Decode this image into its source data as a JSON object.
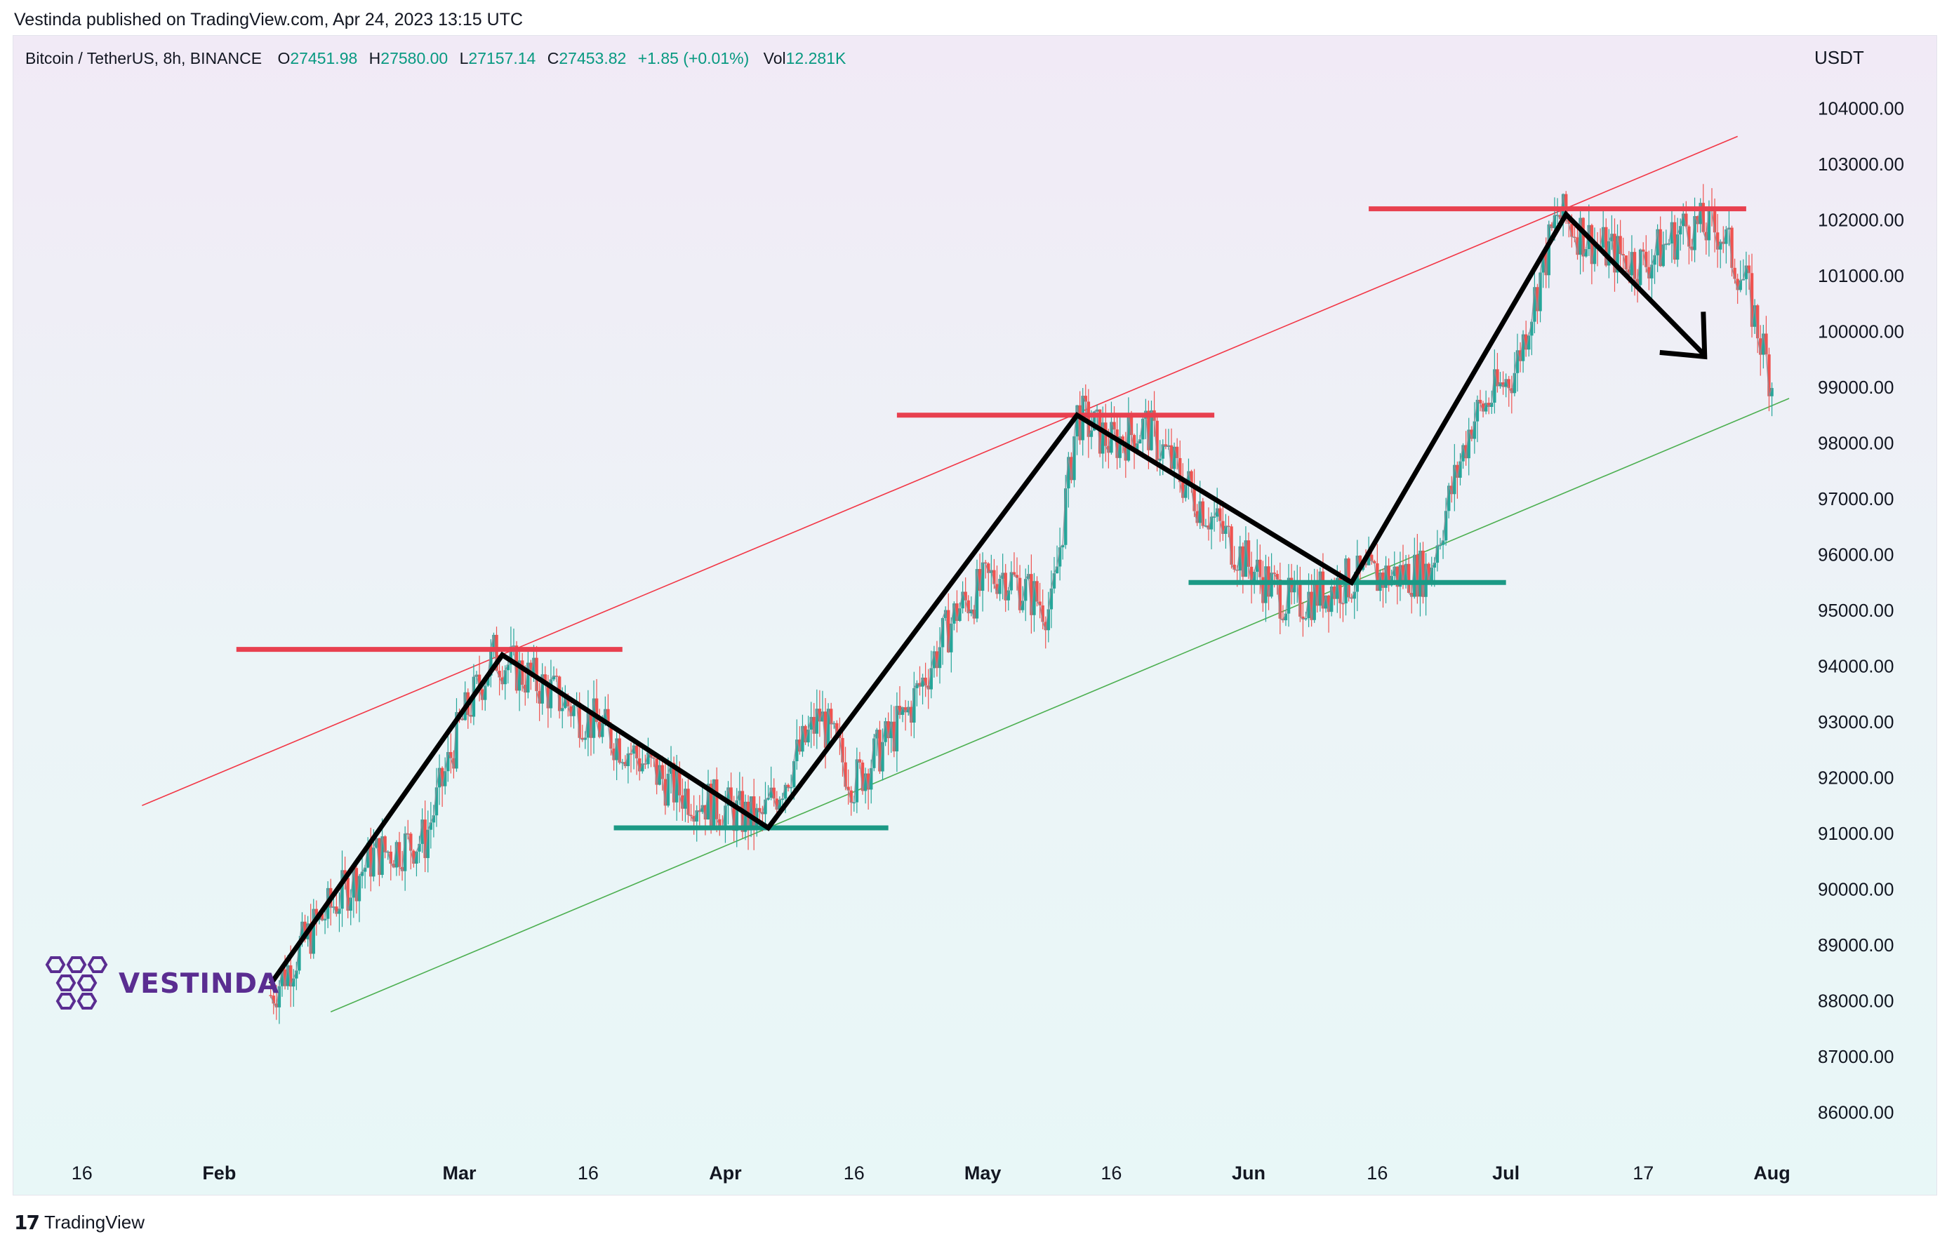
{
  "header": {
    "published": "Vestinda published on TradingView.com, Apr 24, 2023 13:15 UTC"
  },
  "legend": {
    "symbol": "Bitcoin / TetherUS, 8h, BINANCE",
    "o_label": "O",
    "o_value": "27451.98",
    "h_label": "H",
    "h_value": "27580.00",
    "l_label": "L",
    "l_value": "27157.14",
    "c_label": "C",
    "c_value": "27453.82",
    "change": "+1.85 (+0.01%)",
    "vol_label": "Vol",
    "vol_value": "12.281K"
  },
  "brand": {
    "name": "VESTINDA"
  },
  "footer": {
    "logo": "17",
    "label": "TradingView"
  },
  "colors": {
    "up": "#26a69a",
    "down": "#ef5350",
    "resistance": "#e8404f",
    "support": "#1b9985",
    "channel_upper": "#f23645",
    "channel_lower": "#4caf50",
    "zigzag": "#000000",
    "brand": "#5a2d91"
  },
  "chart_data": {
    "type": "candlestick",
    "unit": "USDT",
    "y_ticks": [
      "104000.00",
      "103000.00",
      "102000.00",
      "101000.00",
      "100000.00",
      "99000.00",
      "98000.00",
      "97000.00",
      "96000.00",
      "95000.00",
      "94000.00",
      "93000.00",
      "92000.00",
      "91000.00",
      "90000.00",
      "89000.00",
      "88000.00",
      "87000.00",
      "86000.00"
    ],
    "ylim": [
      85300,
      104800
    ],
    "x_ticks": [
      {
        "label": "16",
        "date": "2023-01-16"
      },
      {
        "label": "Feb",
        "date": "2023-02-01"
      },
      {
        "label": "Mar",
        "date": "2023-03-01"
      },
      {
        "label": "16",
        "date": "2023-03-16"
      },
      {
        "label": "Apr",
        "date": "2023-04-01"
      },
      {
        "label": "16",
        "date": "2023-04-16"
      },
      {
        "label": "May",
        "date": "2023-05-01"
      },
      {
        "label": "16",
        "date": "2023-05-16"
      },
      {
        "label": "Jun",
        "date": "2023-06-01"
      },
      {
        "label": "16",
        "date": "2023-06-16"
      },
      {
        "label": "Jul",
        "date": "2023-07-01"
      },
      {
        "label": "17",
        "date": "2023-07-17"
      },
      {
        "label": "Aug",
        "date": "2023-08-01"
      }
    ],
    "xlim": [
      "2023-01-08",
      "2023-08-03"
    ],
    "price_path": [
      {
        "date": "2023-02-07",
        "price": 88100
      },
      {
        "date": "2023-02-12",
        "price": 89300
      },
      {
        "date": "2023-02-19",
        "price": 90600
      },
      {
        "date": "2023-02-25",
        "price": 90900
      },
      {
        "date": "2023-03-01",
        "price": 92900
      },
      {
        "date": "2023-03-05",
        "price": 94200
      },
      {
        "date": "2023-03-12",
        "price": 93500
      },
      {
        "date": "2023-03-20",
        "price": 92600
      },
      {
        "date": "2023-03-26",
        "price": 91800
      },
      {
        "date": "2023-04-05",
        "price": 91200
      },
      {
        "date": "2023-04-12",
        "price": 93100
      },
      {
        "date": "2023-04-16",
        "price": 91900
      },
      {
        "date": "2023-04-22",
        "price": 93100
      },
      {
        "date": "2023-04-28",
        "price": 95000
      },
      {
        "date": "2023-05-03",
        "price": 95700
      },
      {
        "date": "2023-05-09",
        "price": 95000
      },
      {
        "date": "2023-05-12",
        "price": 98500
      },
      {
        "date": "2023-05-16",
        "price": 98000
      },
      {
        "date": "2023-05-20",
        "price": 98300
      },
      {
        "date": "2023-05-25",
        "price": 97200
      },
      {
        "date": "2023-06-01",
        "price": 95800
      },
      {
        "date": "2023-06-06",
        "price": 95100
      },
      {
        "date": "2023-06-12",
        "price": 95500
      },
      {
        "date": "2023-06-16",
        "price": 95600
      },
      {
        "date": "2023-06-22",
        "price": 95700
      },
      {
        "date": "2023-06-27",
        "price": 98400
      },
      {
        "date": "2023-07-02",
        "price": 99300
      },
      {
        "date": "2023-07-07",
        "price": 102100
      },
      {
        "date": "2023-07-12",
        "price": 101500
      },
      {
        "date": "2023-07-17",
        "price": 101200
      },
      {
        "date": "2023-07-22",
        "price": 101900
      },
      {
        "date": "2023-07-26",
        "price": 101800
      },
      {
        "date": "2023-07-29",
        "price": 100800
      },
      {
        "date": "2023-08-01",
        "price": 99100
      }
    ],
    "annotations": {
      "zigzag": [
        {
          "date": "2023-02-07",
          "price": 88300
        },
        {
          "date": "2023-03-06",
          "price": 94200
        },
        {
          "date": "2023-04-06",
          "price": 91100
        },
        {
          "date": "2023-05-12",
          "price": 98500
        },
        {
          "date": "2023-06-13",
          "price": 95500
        },
        {
          "date": "2023-07-08",
          "price": 102100
        },
        {
          "date": "2023-07-24",
          "price": 99600
        }
      ],
      "arrow_tip": {
        "date": "2023-07-24",
        "price": 99600
      },
      "resistance_levels": [
        {
          "from": "2023-02-03",
          "to": "2023-03-20",
          "price": 94300
        },
        {
          "from": "2023-04-21",
          "to": "2023-05-28",
          "price": 98500
        },
        {
          "from": "2023-06-15",
          "to": "2023-07-29",
          "price": 102200
        }
      ],
      "support_levels": [
        {
          "from": "2023-03-19",
          "to": "2023-04-20",
          "price": 91100
        },
        {
          "from": "2023-05-25",
          "to": "2023-07-01",
          "price": 95500
        }
      ],
      "channel_upper": {
        "from": {
          "date": "2023-01-23",
          "price": 91500
        },
        "to": {
          "date": "2023-07-28",
          "price": 103500
        }
      },
      "channel_lower": {
        "from": {
          "date": "2023-02-14",
          "price": 87800
        },
        "to": {
          "date": "2023-08-03",
          "price": 98800
        }
      }
    }
  }
}
